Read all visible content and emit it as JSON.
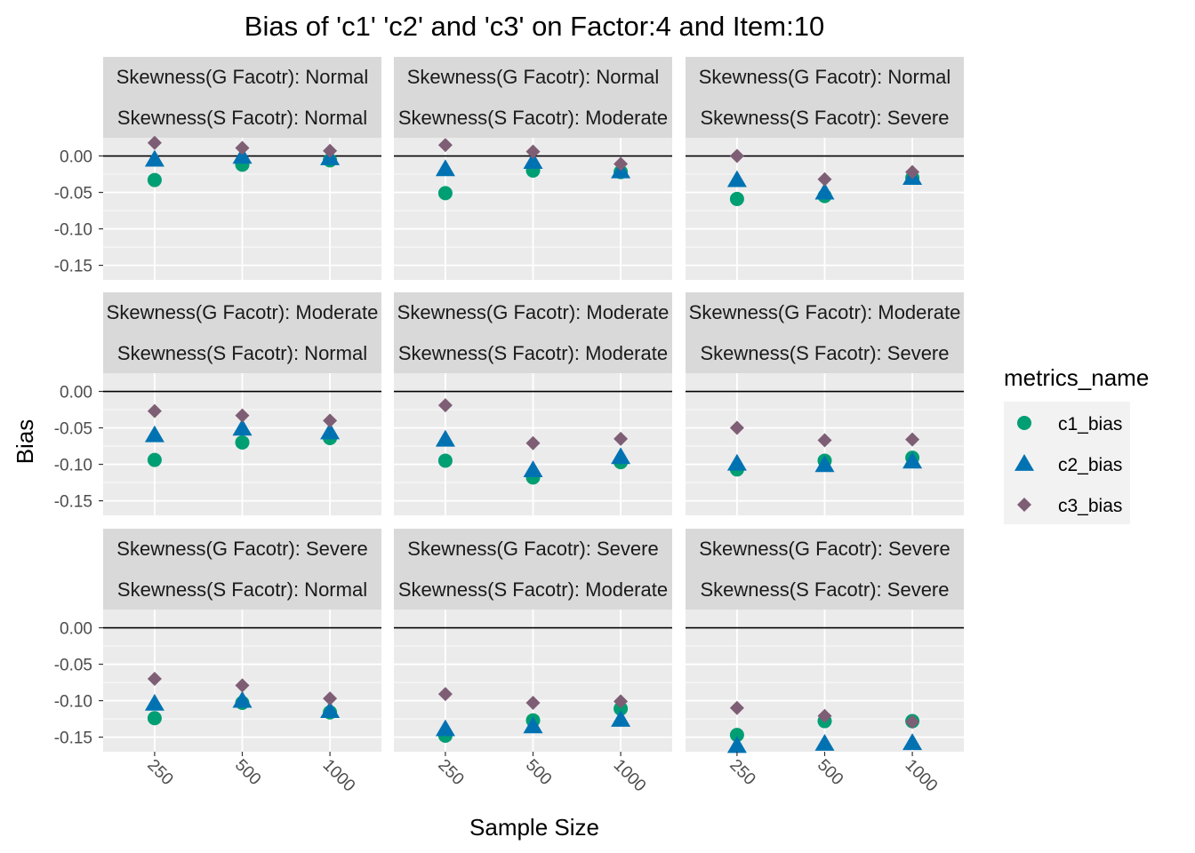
{
  "chart_data": {
    "type": "scatter",
    "title": "Bias of 'c1' 'c2' and 'c3' on Factor:4 and Item:10",
    "xlabel": "Sample Size",
    "ylabel": "Bias",
    "x_categories": [
      "250",
      "500",
      "1000"
    ],
    "y_ticks": [
      "0.00",
      "-0.05",
      "-0.10",
      "-0.15"
    ],
    "ylim": [
      -0.17,
      0.025
    ],
    "reference_line_y": 0,
    "grid": true,
    "legend": {
      "title": "metrics_name",
      "position": "right",
      "entries": [
        {
          "name": "c1_bias",
          "shape": "circle",
          "color": "#009E73"
        },
        {
          "name": "c2_bias",
          "shape": "triangle",
          "color": "#0072B2"
        },
        {
          "name": "c3_bias",
          "shape": "diamond",
          "color": "#7E5E75"
        }
      ]
    },
    "panels": [
      {
        "strip_top": "Skewness(G Facotr): Normal",
        "strip_bottom": "Skewness(S Facotr): Normal",
        "c1_bias": [
          -0.033,
          -0.012,
          -0.006
        ],
        "c2_bias": [
          -0.005,
          -0.001,
          -0.003
        ],
        "c3_bias": [
          0.018,
          0.011,
          0.007
        ]
      },
      {
        "strip_top": "Skewness(G Facotr): Normal",
        "strip_bottom": "Skewness(S Facotr): Moderate",
        "c1_bias": [
          -0.051,
          -0.02,
          -0.022
        ],
        "c2_bias": [
          -0.018,
          -0.008,
          -0.021
        ],
        "c3_bias": [
          0.015,
          0.006,
          -0.011
        ]
      },
      {
        "strip_top": "Skewness(G Facotr): Normal",
        "strip_bottom": "Skewness(S Facotr): Severe",
        "c1_bias": [
          -0.059,
          -0.055,
          -0.03
        ],
        "c2_bias": [
          -0.033,
          -0.05,
          -0.03
        ],
        "c3_bias": [
          0.0,
          -0.032,
          -0.022
        ]
      },
      {
        "strip_top": "Skewness(G Facotr): Moderate",
        "strip_bottom": "Skewness(S Facotr): Normal",
        "c1_bias": [
          -0.094,
          -0.07,
          -0.064
        ],
        "c2_bias": [
          -0.06,
          -0.051,
          -0.056
        ],
        "c3_bias": [
          -0.027,
          -0.033,
          -0.04
        ]
      },
      {
        "strip_top": "Skewness(G Facotr): Moderate",
        "strip_bottom": "Skewness(S Facotr): Moderate",
        "c1_bias": [
          -0.095,
          -0.118,
          -0.097
        ],
        "c2_bias": [
          -0.066,
          -0.108,
          -0.09
        ],
        "c3_bias": [
          -0.019,
          -0.071,
          -0.065
        ]
      },
      {
        "strip_top": "Skewness(G Facotr): Moderate",
        "strip_bottom": "Skewness(S Facotr): Severe",
        "c1_bias": [
          -0.107,
          -0.095,
          -0.091
        ],
        "c2_bias": [
          -0.099,
          -0.101,
          -0.096
        ],
        "c3_bias": [
          -0.05,
          -0.067,
          -0.066
        ]
      },
      {
        "strip_top": "Skewness(G Facotr): Severe",
        "strip_bottom": "Skewness(S Facotr): Normal",
        "c1_bias": [
          -0.124,
          -0.103,
          -0.116
        ],
        "c2_bias": [
          -0.104,
          -0.1,
          -0.114
        ],
        "c3_bias": [
          -0.07,
          -0.079,
          -0.097
        ]
      },
      {
        "strip_top": "Skewness(G Facotr): Severe",
        "strip_bottom": "Skewness(S Facotr): Moderate",
        "c1_bias": [
          -0.148,
          -0.127,
          -0.111
        ],
        "c2_bias": [
          -0.139,
          -0.135,
          -0.126
        ],
        "c3_bias": [
          -0.091,
          -0.103,
          -0.101
        ]
      },
      {
        "strip_top": "Skewness(G Facotr): Severe",
        "strip_bottom": "Skewness(S Facotr): Severe",
        "c1_bias": [
          -0.147,
          -0.128,
          -0.128
        ],
        "c2_bias": [
          -0.162,
          -0.159,
          -0.158
        ],
        "c3_bias": [
          -0.11,
          -0.121,
          -0.129
        ]
      }
    ]
  }
}
